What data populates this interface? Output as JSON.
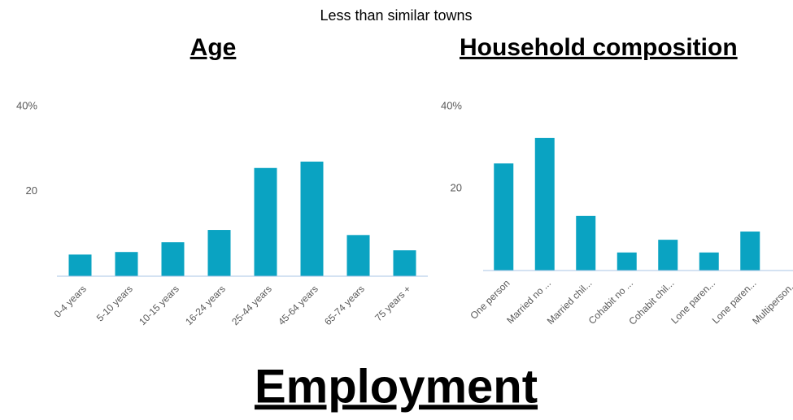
{
  "header": {
    "subtitle": "Less than similar towns"
  },
  "chart_data": [
    {
      "type": "bar",
      "title": "Age",
      "categories": [
        "0-4 years",
        "5-10 years",
        "10-15 years",
        "16-24 years",
        "25-44 years",
        "45-64 years",
        "65-74 years",
        "75 years +"
      ],
      "values": [
        5.1,
        5.7,
        8,
        10.9,
        25.5,
        27,
        9.7,
        6.1
      ],
      "color": "#0aa3c2",
      "ylim": [
        0,
        40
      ],
      "yticks": [
        0,
        20,
        {
          "value": 40,
          "label": "40%"
        }
      ],
      "grid": false
    },
    {
      "type": "bar",
      "title": "Household composition",
      "categories": [
        "One person",
        "Married no ...",
        "Married chil...",
        "Cohabit no ...",
        "Cohabit chil...",
        "Lone paren...",
        "Lone paren...",
        "Multiperson..."
      ],
      "values": [
        26.1,
        32.3,
        13.3,
        4.4,
        7.5,
        4.4,
        9.5,
        null
      ],
      "color": "#0aa3c2",
      "ylim": [
        0,
        40
      ],
      "yticks": [
        0,
        20,
        {
          "value": 40,
          "label": "40%"
        }
      ],
      "grid": false
    }
  ],
  "footer": {
    "title": "Employment"
  }
}
